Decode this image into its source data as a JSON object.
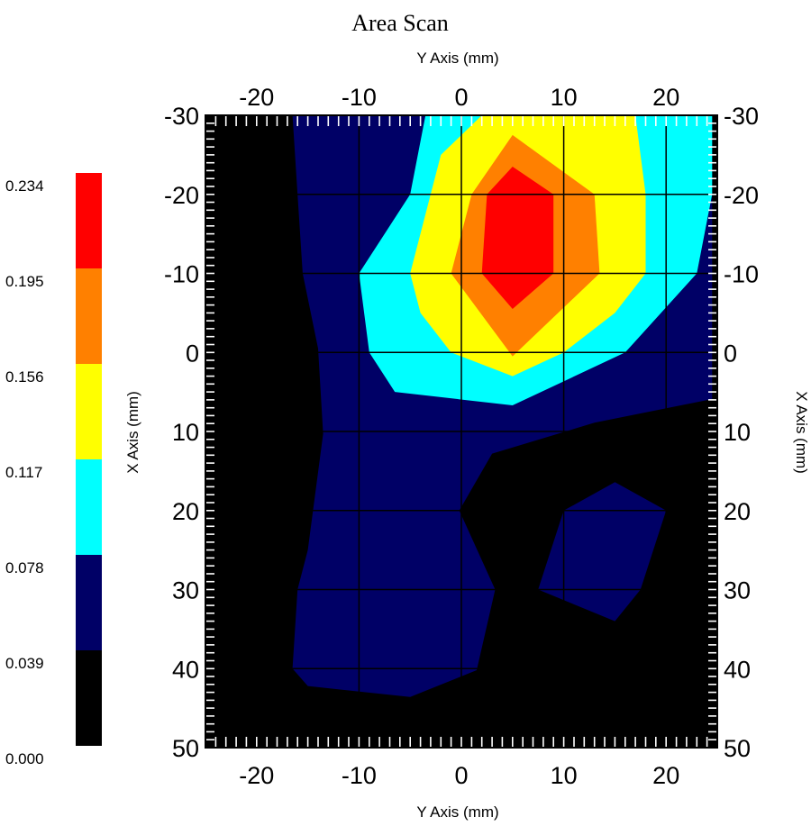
{
  "chart_data": {
    "type": "heatmap",
    "title": "Area Scan",
    "x_axis_label": "Y Axis (mm)",
    "y_axis_label": "X Axis (mm)",
    "x_range": [
      -25,
      25
    ],
    "y_range": [
      -30,
      50
    ],
    "y_inverted": true,
    "x_ticks": [
      -20,
      -10,
      0,
      10,
      20
    ],
    "y_ticks": [
      -30,
      -20,
      -10,
      0,
      10,
      20,
      30,
      40,
      50
    ],
    "grid": true,
    "colorbar": {
      "placement": "left",
      "ticks": [
        "0.234",
        "0.195",
        "0.156",
        "0.117",
        "0.078",
        "0.039",
        "0.000"
      ],
      "bands": [
        {
          "min": 0.195,
          "max": 0.234,
          "color": "#ff0000"
        },
        {
          "min": 0.156,
          "max": 0.195,
          "color": "#ff8000"
        },
        {
          "min": 0.117,
          "max": 0.156,
          "color": "#ffff00"
        },
        {
          "min": 0.078,
          "max": 0.117,
          "color": "#00ffff"
        },
        {
          "min": 0.039,
          "max": 0.078,
          "color": "#000066"
        },
        {
          "min": 0.0,
          "max": 0.039,
          "color": "#000000"
        }
      ]
    },
    "regions": [
      {
        "level": "0.039-0.078",
        "color": "#000066",
        "points": [
          [
            -16.5,
            -30
          ],
          [
            24.5,
            -30
          ],
          [
            24.5,
            5.9
          ],
          [
            13,
            8.9
          ],
          [
            3,
            12.8
          ],
          [
            -0.2,
            20
          ],
          [
            3.3,
            30
          ],
          [
            1.5,
            40.2
          ],
          [
            -5,
            43.6
          ],
          [
            -15,
            42.2
          ],
          [
            -16.5,
            40
          ],
          [
            -16,
            30
          ],
          [
            -15,
            25
          ],
          [
            -13.5,
            10.3
          ],
          [
            -14,
            -0.5
          ],
          [
            -15.5,
            -10
          ],
          [
            -16,
            -20
          ]
        ]
      },
      {
        "level": "0.078-0.117",
        "color": "#00ffff",
        "points": [
          [
            -3.5,
            -30
          ],
          [
            24.5,
            -30
          ],
          [
            24.5,
            -20
          ],
          [
            23,
            -10
          ],
          [
            16,
            0
          ],
          [
            5,
            6.7
          ],
          [
            -6.5,
            5
          ],
          [
            -9,
            0
          ],
          [
            -10,
            -10
          ],
          [
            -5,
            -20
          ]
        ]
      },
      {
        "level": "0.117-0.156",
        "color": "#ffff00",
        "points": [
          [
            2,
            -30
          ],
          [
            17,
            -30
          ],
          [
            18,
            -20
          ],
          [
            18,
            -10
          ],
          [
            15,
            -5
          ],
          [
            10,
            0
          ],
          [
            5,
            3
          ],
          [
            -1,
            0
          ],
          [
            -4,
            -5
          ],
          [
            -5,
            -10
          ],
          [
            -3,
            -20
          ],
          [
            -2,
            -25
          ]
        ]
      },
      {
        "level": "0.156-0.195",
        "color": "#ff8000",
        "points": [
          [
            5,
            -27.5
          ],
          [
            13,
            -20
          ],
          [
            13.5,
            -10
          ],
          [
            5,
            0.5
          ],
          [
            -1,
            -10
          ],
          [
            1,
            -20
          ]
        ]
      },
      {
        "level": "0.195-0.234",
        "color": "#ff0000",
        "points": [
          [
            5,
            -23.5
          ],
          [
            9,
            -20
          ],
          [
            9,
            -10
          ],
          [
            5,
            -5.5
          ],
          [
            2,
            -10
          ],
          [
            2.5,
            -20
          ]
        ]
      },
      {
        "level": "0.039-0.078",
        "color": "#000066",
        "points": [
          [
            15,
            16.4
          ],
          [
            20,
            20
          ],
          [
            17.5,
            30
          ],
          [
            15,
            34
          ],
          [
            7.5,
            30
          ],
          [
            10,
            20
          ]
        ]
      }
    ]
  }
}
